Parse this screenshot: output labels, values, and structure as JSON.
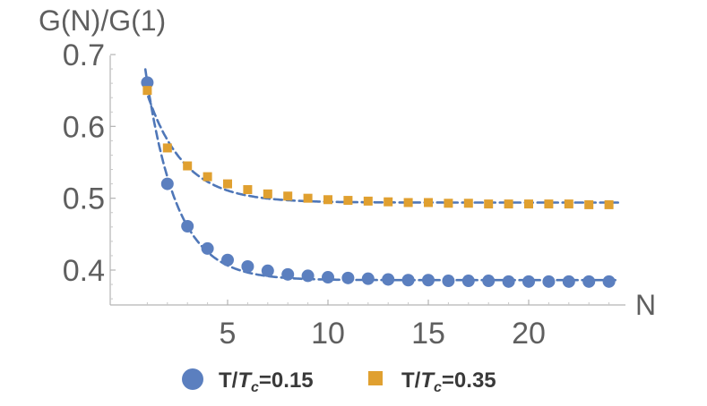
{
  "chart_data": {
    "type": "scatter",
    "ylabel": "G(N)/G(1)",
    "xlabel": "N",
    "xlim": [
      0,
      24.5
    ],
    "ylim": [
      0.35,
      0.7
    ],
    "x_ticks": [
      5,
      10,
      15,
      20
    ],
    "x_tick_labels": [
      "5",
      "10",
      "15",
      "20"
    ],
    "y_ticks": [
      0.4,
      0.5,
      0.6,
      0.7
    ],
    "y_tick_labels": [
      "0.4",
      "0.5",
      "0.6",
      "0.7"
    ],
    "grid": false,
    "legend_position": "bottom",
    "series": [
      {
        "name": "T/Tc=0.15",
        "legend": {
          "prefix": "T/",
          "var": "T",
          "sub": "c",
          "suffix": "=0.15"
        },
        "marker": "circle",
        "color": "#5b7fbf",
        "x": [
          1,
          2,
          3,
          4,
          5,
          6,
          7,
          8,
          9,
          10,
          11,
          12,
          13,
          14,
          15,
          16,
          17,
          18,
          19,
          20,
          21,
          22,
          23,
          24
        ],
        "y": [
          0.661,
          0.52,
          0.461,
          0.43,
          0.414,
          0.405,
          0.399,
          0.394,
          0.392,
          0.39,
          0.389,
          0.388,
          0.387,
          0.386,
          0.386,
          0.385,
          0.385,
          0.385,
          0.384,
          0.384,
          0.384,
          0.384,
          0.384,
          0.384
        ],
        "fit": {
          "a": 0.386,
          "b": 0.275,
          "k": 0.65
        }
      },
      {
        "name": "T/Tc=0.35",
        "legend": {
          "prefix": "T/",
          "var": "T",
          "sub": "c",
          "suffix": "=0.35"
        },
        "marker": "square",
        "color": "#e0a030",
        "x": [
          1,
          2,
          3,
          4,
          5,
          6,
          7,
          8,
          9,
          10,
          11,
          12,
          13,
          14,
          15,
          16,
          17,
          18,
          19,
          20,
          21,
          22,
          23,
          24
        ],
        "y": [
          0.65,
          0.57,
          0.545,
          0.53,
          0.52,
          0.512,
          0.506,
          0.503,
          0.5,
          0.498,
          0.497,
          0.496,
          0.495,
          0.494,
          0.494,
          0.493,
          0.493,
          0.492,
          0.492,
          0.492,
          0.492,
          0.492,
          0.491,
          0.491
        ],
        "fit": {
          "a": 0.494,
          "b": 0.151,
          "k": 0.55
        }
      }
    ],
    "fit_line_color": "#4f77b8"
  }
}
